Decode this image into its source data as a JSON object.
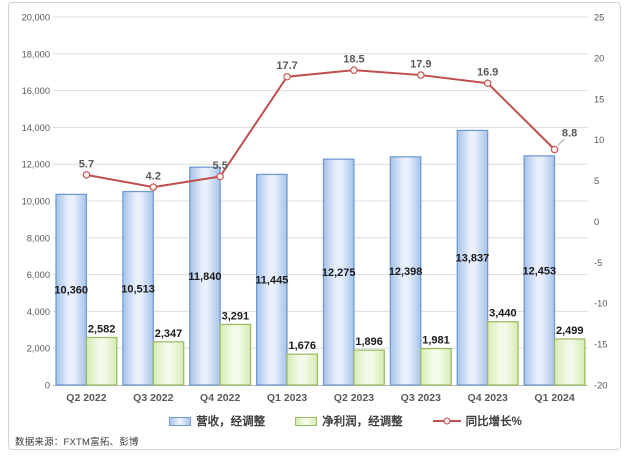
{
  "source_note": "数据来源：FXTM富拓、彭博",
  "colors": {
    "revenue_edge": "#a6c2ea",
    "revenue_center": "#e9f0fc",
    "revenue_border": "#6f9ad0",
    "profit_edge": "#d5ecb4",
    "profit_center": "#f4fae9",
    "profit_border": "#9cba62",
    "line": "#c0504d",
    "marker_fill": "#fbeeee",
    "grid": "#dcdcdc",
    "axis_line": "#b7b7b7",
    "axis_text": "#595959",
    "bar_label": "#1a1a1a",
    "leader_line": "#a6a6a6",
    "frame_border": "#d4d4d4",
    "background": "#ffffff"
  },
  "chart_data": {
    "type": "combo",
    "categories": [
      "Q2 2022",
      "Q3 2022",
      "Q4 2022",
      "Q1 2023",
      "Q2 2023",
      "Q3 2023",
      "Q4 2023",
      "Q1 2024"
    ],
    "series": [
      {
        "name": "营收，经调整",
        "type": "bar",
        "axis": "left",
        "values": [
          10360,
          10513,
          11840,
          11445,
          12275,
          12398,
          13837,
          12453
        ],
        "labels": [
          "10,360",
          "10,513",
          "11,840",
          "11,445",
          "12,275",
          "12,398",
          "13,837",
          "12,453"
        ]
      },
      {
        "name": "净利润，经调整",
        "type": "bar",
        "axis": "left",
        "values": [
          2582,
          2347,
          3291,
          1676,
          1896,
          1981,
          3440,
          2499
        ],
        "labels": [
          "2,582",
          "2,347",
          "3,291",
          "1,676",
          "1,896",
          "1,981",
          "3,440",
          "2,499"
        ]
      },
      {
        "name": "同比增长%",
        "type": "line",
        "axis": "right",
        "values": [
          5.7,
          4.2,
          5.5,
          17.7,
          18.5,
          17.9,
          16.9,
          8.8
        ],
        "labels": [
          "5.7",
          "4.2",
          "5.5",
          "17.7",
          "18.5",
          "17.9",
          "16.9",
          "8.8"
        ]
      }
    ],
    "left_axis": {
      "min": 0,
      "max": 20000,
      "step": 2000,
      "ticks": [
        "0",
        "2,000",
        "4,000",
        "6,000",
        "8,000",
        "10,000",
        "12,000",
        "14,000",
        "16,000",
        "18,000",
        "20,000"
      ]
    },
    "right_axis": {
      "min": -20,
      "max": 25,
      "step": 5,
      "ticks": [
        "-20",
        "-15",
        "-10",
        "-5",
        "0",
        "5",
        "10",
        "15",
        "20",
        "25"
      ]
    },
    "grid": true,
    "legend_position": "bottom",
    "title": ""
  }
}
